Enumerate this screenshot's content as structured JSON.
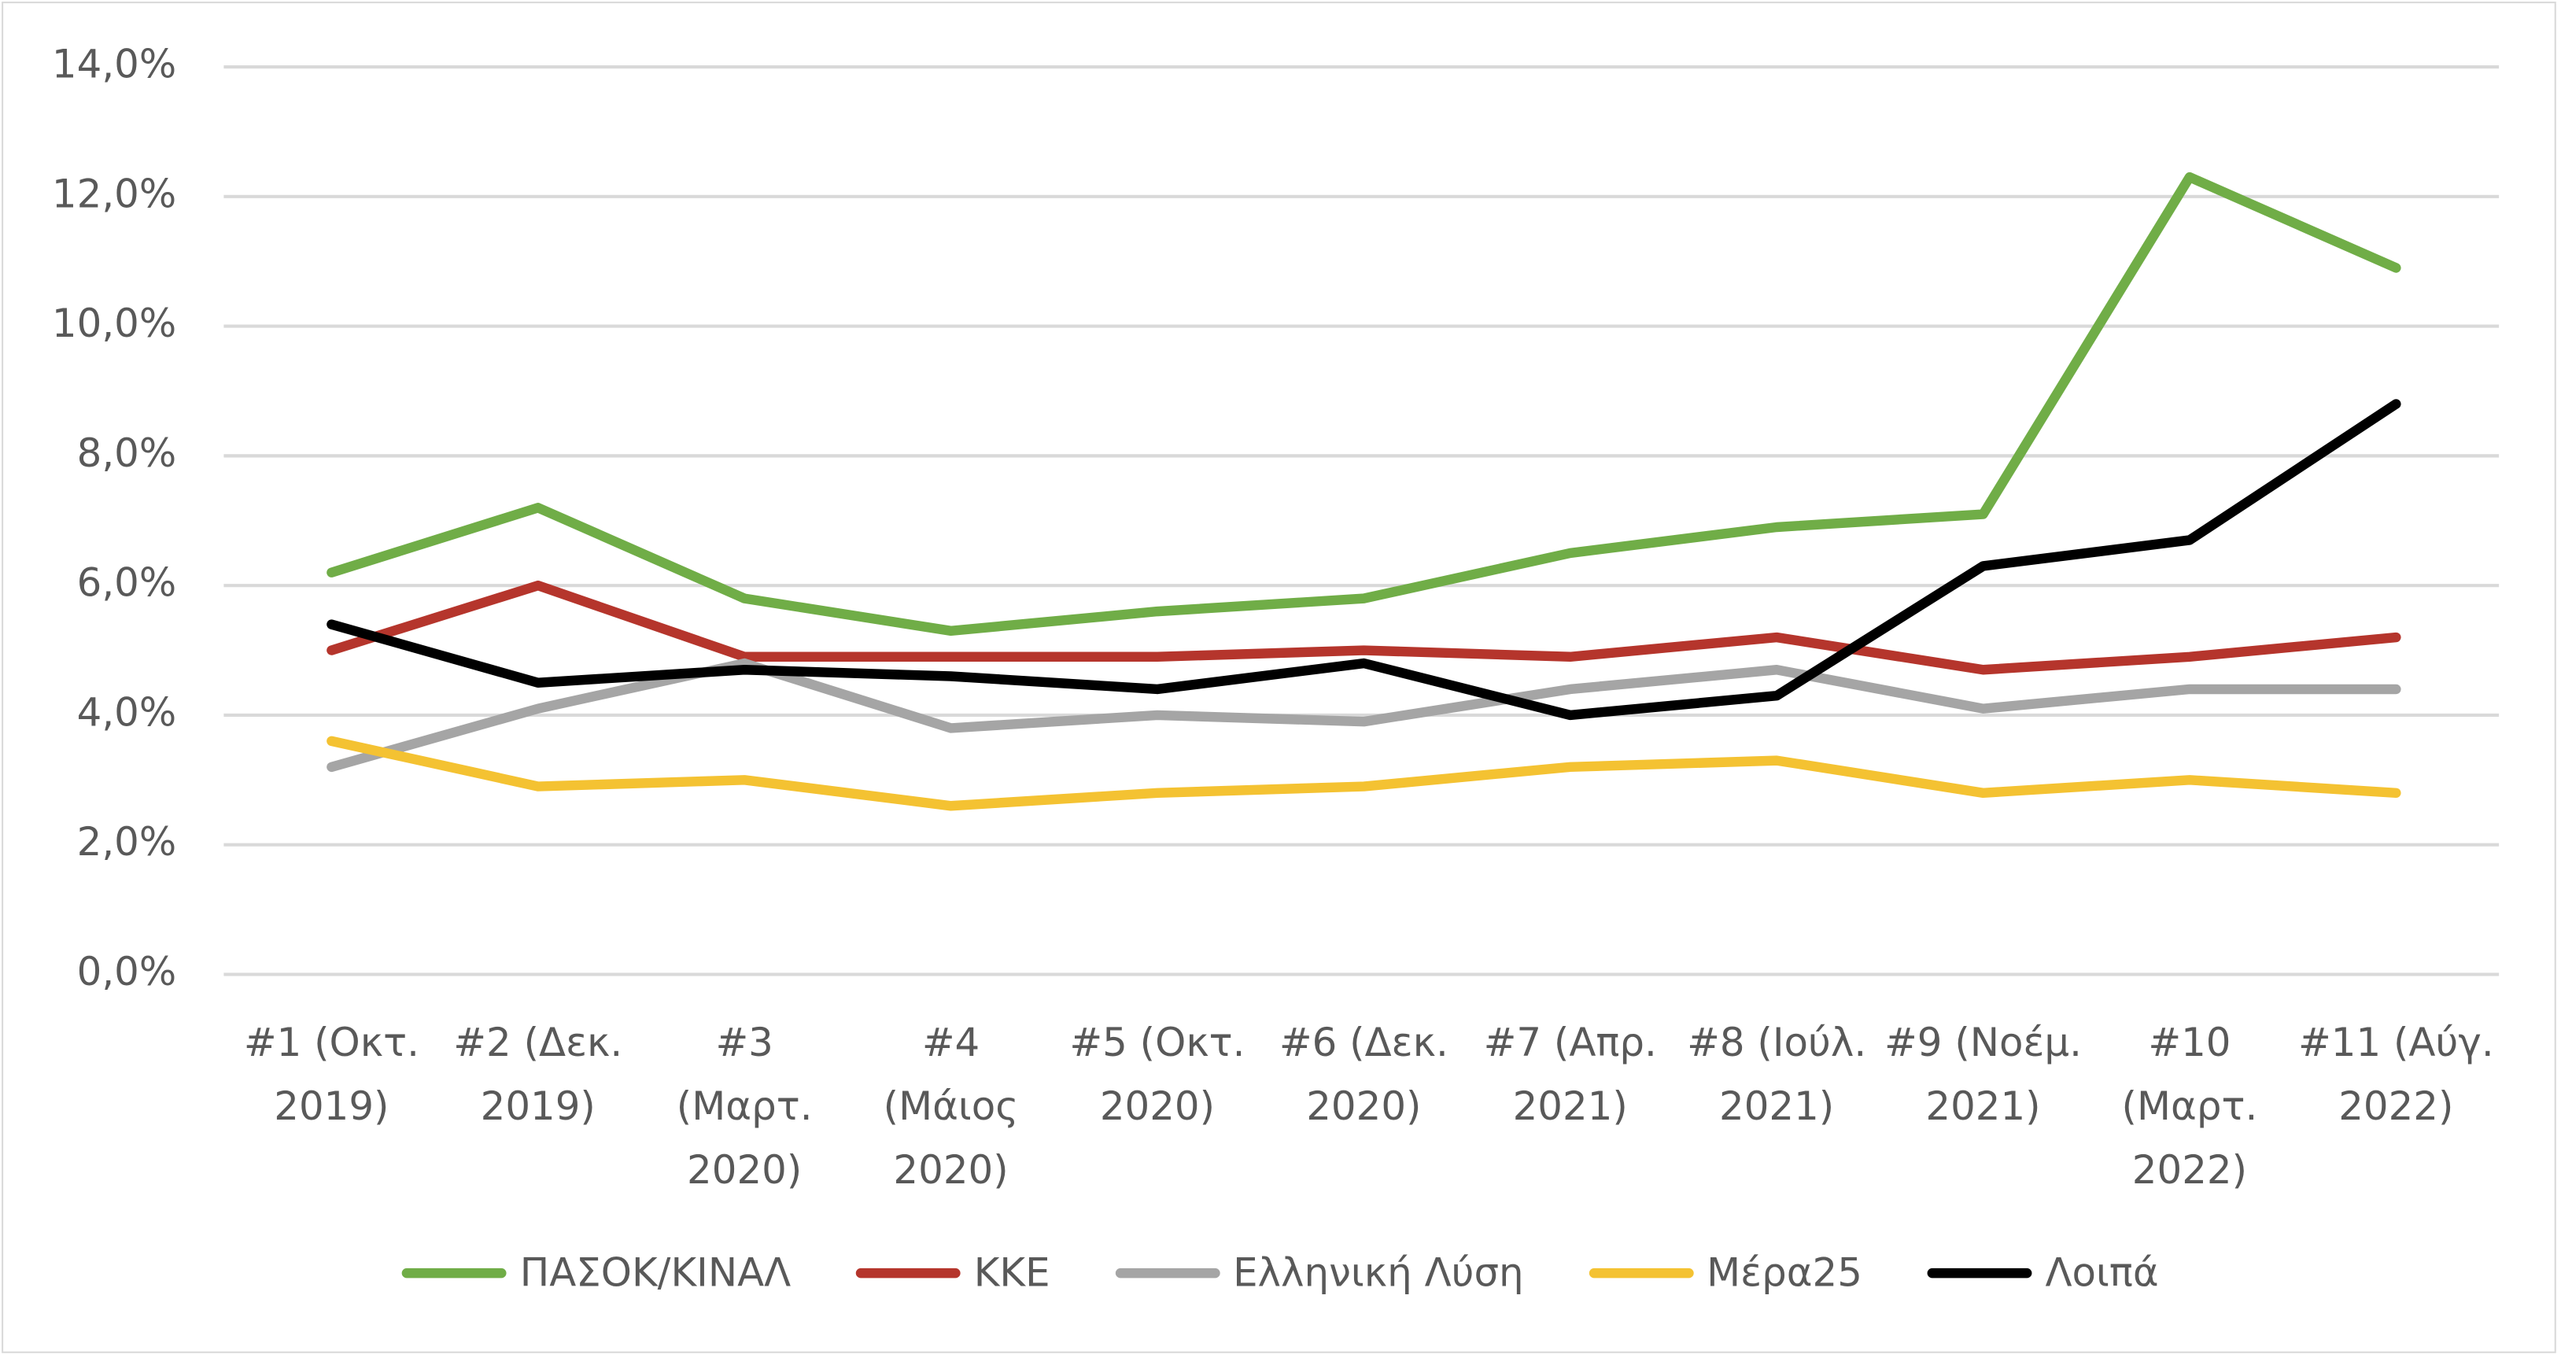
{
  "chart_data": {
    "type": "line",
    "categories": [
      "#1 (Οκτ. 2019)",
      "#2 (Δεκ. 2019)",
      "#3 (Μαρτ. 2020)",
      "#4 (Μάιος 2020)",
      "#5 (Οκτ. 2020)",
      "#6 (Δεκ. 2020)",
      "#7 (Απρ. 2021)",
      "#8 (Ιούλ. 2021)",
      "#9 (Νοέμ. 2021)",
      "#10 (Μαρτ. 2022)",
      "#11 (Αύγ. 2022)"
    ],
    "series": [
      {
        "name": "ΠΑΣΟΚ/ΚΙΝΑΛ",
        "color": "#70ad47",
        "values": [
          6.2,
          7.2,
          5.8,
          5.3,
          5.6,
          5.8,
          6.5,
          6.9,
          7.1,
          12.3,
          10.9
        ]
      },
      {
        "name": "ΚΚΕ",
        "color": "#b5352c",
        "values": [
          5.0,
          6.0,
          4.9,
          4.9,
          4.9,
          5.0,
          4.9,
          5.2,
          4.7,
          4.9,
          5.2
        ]
      },
      {
        "name": "Ελληνική Λύση",
        "color": "#a5a5a5",
        "values": [
          3.2,
          4.1,
          4.8,
          3.8,
          4.0,
          3.9,
          4.4,
          4.7,
          4.1,
          4.4,
          4.4
        ]
      },
      {
        "name": "Μέρα25",
        "color": "#f4c232",
        "values": [
          3.6,
          2.9,
          3.0,
          2.6,
          2.8,
          2.9,
          3.2,
          3.3,
          2.8,
          3.0,
          2.8
        ]
      },
      {
        "name": "Λοιπά",
        "color": "#000000",
        "values": [
          5.4,
          4.5,
          4.7,
          4.6,
          4.4,
          4.8,
          4.0,
          4.3,
          6.3,
          6.7,
          8.8
        ]
      }
    ],
    "ylim": [
      0,
      14
    ],
    "yticks": [
      {
        "value": 0,
        "label": "0,0%"
      },
      {
        "value": 2,
        "label": "2,0%"
      },
      {
        "value": 4,
        "label": "4,0%"
      },
      {
        "value": 6,
        "label": "6,0%"
      },
      {
        "value": 8,
        "label": "8,0%"
      },
      {
        "value": 10,
        "label": "10,0%"
      },
      {
        "value": 12,
        "label": "12,0%"
      },
      {
        "value": 14,
        "label": "14,0%"
      }
    ],
    "grid": true,
    "legend": "bottom"
  }
}
